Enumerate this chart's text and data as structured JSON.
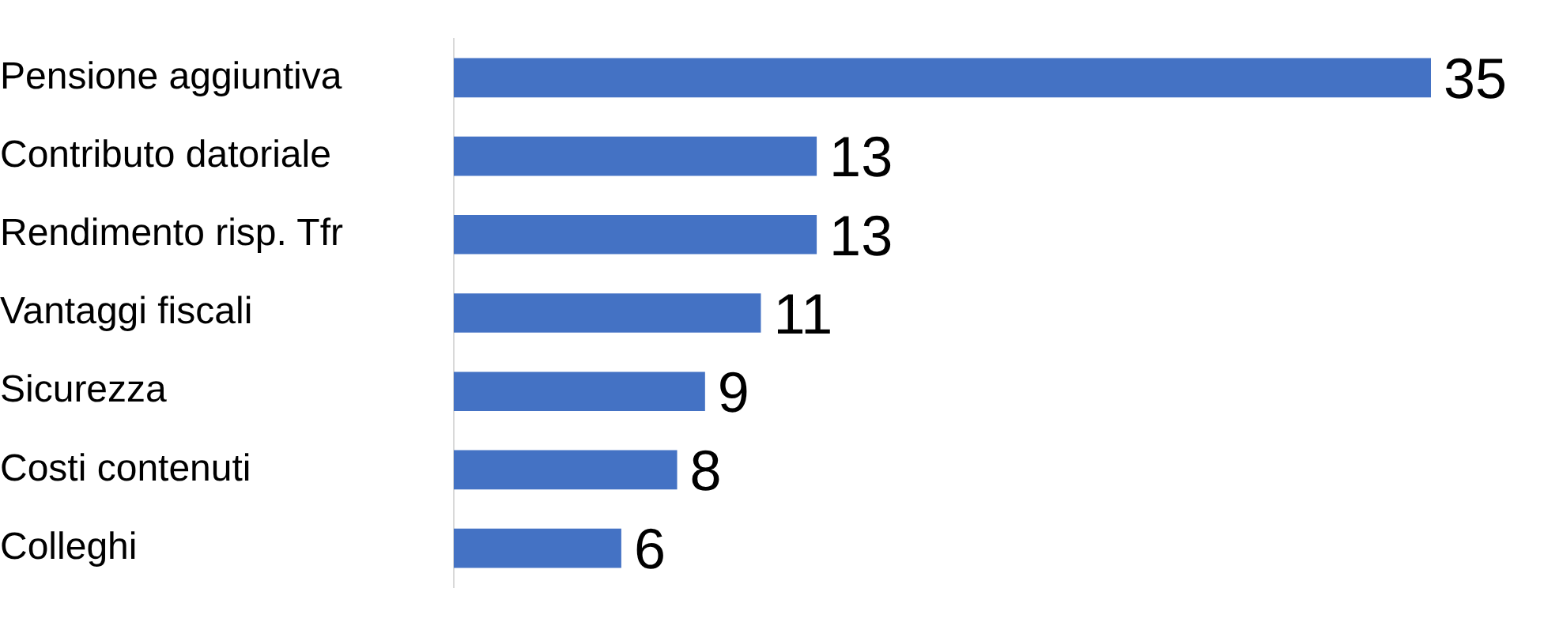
{
  "chart_data": {
    "type": "bar",
    "orientation": "horizontal",
    "categories": [
      "Pensione aggiuntiva",
      "Contributo datoriale",
      "Rendimento risp. Tfr",
      "Vantaggi fiscali",
      "Sicurezza",
      "Costi contenuti",
      "Colleghi"
    ],
    "values": [
      35,
      13,
      13,
      11,
      9,
      8,
      6
    ],
    "color": "#4472c4",
    "data_labels": true
  }
}
